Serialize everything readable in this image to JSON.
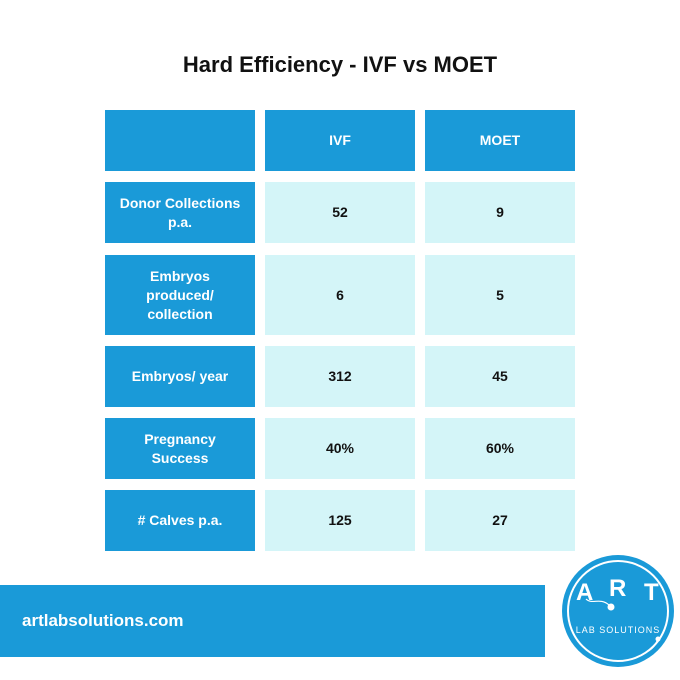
{
  "title": "Hard Efficiency - IVF vs MOET",
  "table": {
    "columns": [
      "",
      "IVF",
      "MOET"
    ],
    "rows": [
      {
        "label": "Donor Collections p.a.",
        "ivf": "52",
        "moet": "9"
      },
      {
        "label": "Embryos produced/ collection",
        "ivf": "6",
        "moet": "5"
      },
      {
        "label": "Embryos/ year",
        "ivf": "312",
        "moet": "45"
      },
      {
        "label": "Pregnancy Success",
        "ivf": "40%",
        "moet": "60%"
      },
      {
        "label": "# Calves p.a.",
        "ivf": "125",
        "moet": "27"
      }
    ]
  },
  "footer": {
    "website": "artlabsolutions.com"
  },
  "logo": {
    "letters": [
      "A",
      "R",
      "T"
    ],
    "subtitle": "LAB SOLUTIONS"
  },
  "colors": {
    "accent": "#1a9ad8",
    "light_cell": "#d4f5f8",
    "text": "#111111"
  }
}
